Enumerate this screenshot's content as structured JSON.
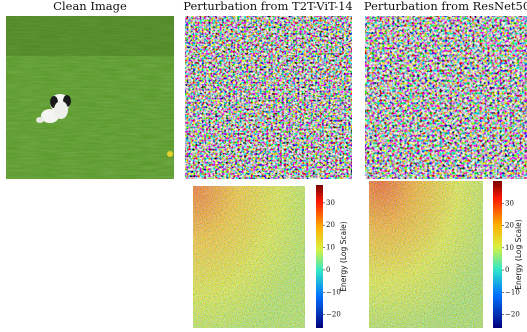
{
  "titles": [
    "Clean Image",
    "Perturbation from T2T-ViT-14",
    "Perturbation from ResNet50"
  ],
  "colorbars": [
    {
      "label": "Energy (Log Scale)",
      "lim": [
        -26,
        38
      ],
      "ticks": [
        30,
        20,
        10,
        0,
        {
          "value": -10,
          "label": "−10"
        },
        {
          "value": -20,
          "label": "−20"
        }
      ]
    },
    {
      "label": "Energy (Log Scale)",
      "lim": [
        -26,
        40
      ],
      "ticks": [
        30,
        20,
        10,
        0,
        {
          "value": -10,
          "label": "−10"
        },
        {
          "value": -20,
          "label": "−20"
        }
      ]
    }
  ]
}
